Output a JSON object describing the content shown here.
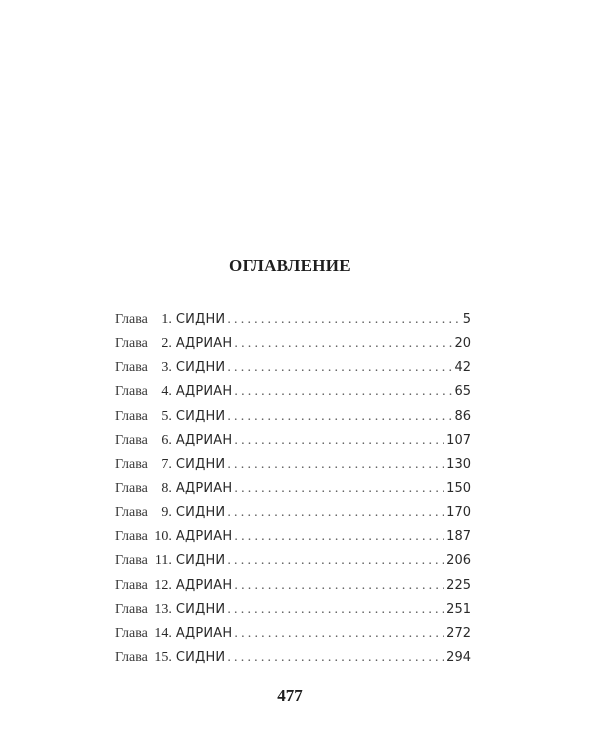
{
  "title": "ОГЛАВЛЕНИЕ",
  "toc": [
    {
      "prefix": "Глава",
      "number": "1.",
      "name": "СИДНИ",
      "page": "5"
    },
    {
      "prefix": "Глава",
      "number": "2.",
      "name": "АДРИАН",
      "page": "20"
    },
    {
      "prefix": "Глава",
      "number": "3.",
      "name": "СИДНИ",
      "page": "42"
    },
    {
      "prefix": "Глава",
      "number": "4.",
      "name": "АДРИАН",
      "page": "65"
    },
    {
      "prefix": "Глава",
      "number": "5.",
      "name": "СИДНИ",
      "page": "86"
    },
    {
      "prefix": "Глава",
      "number": "6.",
      "name": "АДРИАН",
      "page": "107"
    },
    {
      "prefix": "Глава",
      "number": "7.",
      "name": "СИДНИ",
      "page": "130"
    },
    {
      "prefix": "Глава",
      "number": "8.",
      "name": "АДРИАН",
      "page": "150"
    },
    {
      "prefix": "Глава",
      "number": "9.",
      "name": "СИДНИ",
      "page": "170"
    },
    {
      "prefix": "Глава",
      "number": "10.",
      "name": "АДРИАН",
      "page": "187"
    },
    {
      "prefix": "Глава",
      "number": "11.",
      "name": "СИДНИ",
      "page": "206"
    },
    {
      "prefix": "Глава",
      "number": "12.",
      "name": "АДРИАН",
      "page": "225"
    },
    {
      "prefix": "Глава",
      "number": "13.",
      "name": "СИДНИ",
      "page": "251"
    },
    {
      "prefix": "Глава",
      "number": "14.",
      "name": "АДРИАН",
      "page": "272"
    },
    {
      "prefix": "Глава",
      "number": "15.",
      "name": "СИДНИ",
      "page": "294"
    }
  ],
  "page_number": "477"
}
